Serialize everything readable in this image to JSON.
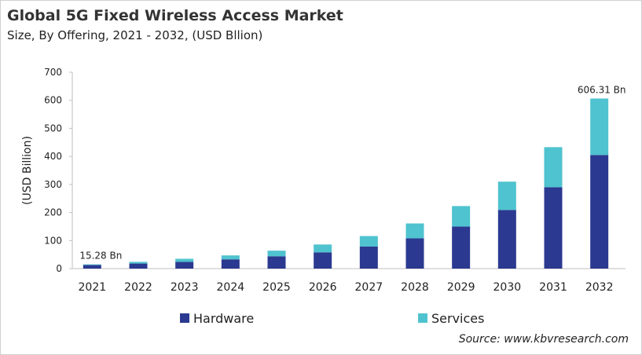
{
  "chart_data": {
    "type": "bar",
    "stacked": true,
    "title": "Global 5G Fixed Wireless Access Market",
    "subtitle": "Size, By Offering, 2021 - 2032, (USD Bllion)",
    "xlabel": "",
    "ylabel": "(USD Billion)",
    "ylim": [
      0,
      700
    ],
    "yticks": [
      0,
      100,
      200,
      300,
      400,
      500,
      600,
      700
    ],
    "grid": false,
    "legend_position": "bottom",
    "categories": [
      "2021",
      "2022",
      "2023",
      "2024",
      "2025",
      "2026",
      "2027",
      "2028",
      "2029",
      "2030",
      "2031",
      "2032"
    ],
    "series": [
      {
        "name": "Hardware",
        "color": "#2b3990",
        "values": [
          13,
          18,
          24,
          33,
          44,
          58,
          79,
          108,
          150,
          209,
          290,
          405
        ]
      },
      {
        "name": "Services",
        "color": "#4fc3cf",
        "values": [
          2.28,
          6,
          11,
          14,
          20,
          28,
          37,
          53,
          73,
          101,
          143,
          201.31
        ]
      }
    ],
    "annotations": [
      {
        "category": "2021",
        "text": "15.28  Bn"
      },
      {
        "category": "2032",
        "text": "606.31  Bn"
      }
    ],
    "source": "Source: www.kbvresearch.com"
  }
}
